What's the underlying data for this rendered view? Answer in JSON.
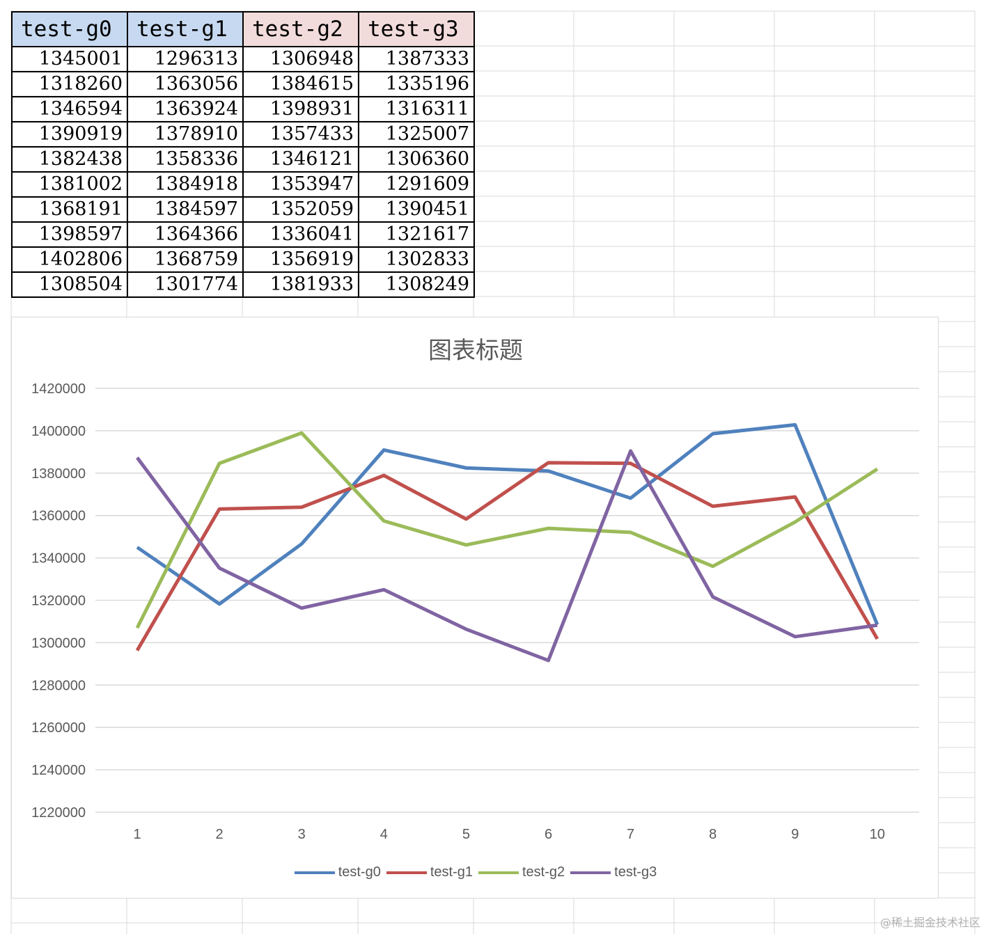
{
  "table": {
    "headers": [
      "test-g0",
      "test-g1",
      "test-g2",
      "test-g3"
    ],
    "rows": [
      [
        "1345001",
        "1296313",
        "1306948",
        "1387333"
      ],
      [
        "1318260",
        "1363056",
        "1384615",
        "1335196"
      ],
      [
        "1346594",
        "1363924",
        "1398931",
        "1316311"
      ],
      [
        "1390919",
        "1378910",
        "1357433",
        "1325007"
      ],
      [
        "1382438",
        "1358336",
        "1346121",
        "1306360"
      ],
      [
        "1381002",
        "1384918",
        "1353947",
        "1291609"
      ],
      [
        "1368191",
        "1384597",
        "1352059",
        "1390451"
      ],
      [
        "1398597",
        "1364366",
        "1336041",
        "1321617"
      ],
      [
        "1402806",
        "1368759",
        "1356919",
        "1302833"
      ],
      [
        "1308504",
        "1301774",
        "1381933",
        "1308249"
      ]
    ]
  },
  "colors": {
    "header_blue": "#c6d9f0",
    "header_pink": "#f2dcdb",
    "gridline": "#d9d9d9",
    "axis_text": "#595959"
  },
  "chart_data": {
    "type": "line",
    "title": "图表标题",
    "x": [
      1,
      2,
      3,
      4,
      5,
      6,
      7,
      8,
      9,
      10
    ],
    "ylim": [
      1220000,
      1420000
    ],
    "yticks": [
      1220000,
      1240000,
      1260000,
      1280000,
      1300000,
      1320000,
      1340000,
      1360000,
      1380000,
      1400000,
      1420000
    ],
    "grid": true,
    "legend": "bottom",
    "series": [
      {
        "name": "test-g0",
        "color": "#4f81bd",
        "values": [
          1345001,
          1318260,
          1346594,
          1390919,
          1382438,
          1381002,
          1368191,
          1398597,
          1402806,
          1308504
        ]
      },
      {
        "name": "test-g1",
        "color": "#c0504d",
        "values": [
          1296313,
          1363056,
          1363924,
          1378910,
          1358336,
          1384918,
          1384597,
          1364366,
          1368759,
          1301774
        ]
      },
      {
        "name": "test-g2",
        "color": "#9bbb59",
        "values": [
          1306948,
          1384615,
          1398931,
          1357433,
          1346121,
          1353947,
          1352059,
          1336041,
          1356919,
          1381933
        ]
      },
      {
        "name": "test-g3",
        "color": "#8064a2",
        "values": [
          1387333,
          1335196,
          1316311,
          1325007,
          1306360,
          1291609,
          1390451,
          1321617,
          1302833,
          1308249
        ]
      }
    ]
  },
  "watermark": "@稀土掘金技术社区"
}
